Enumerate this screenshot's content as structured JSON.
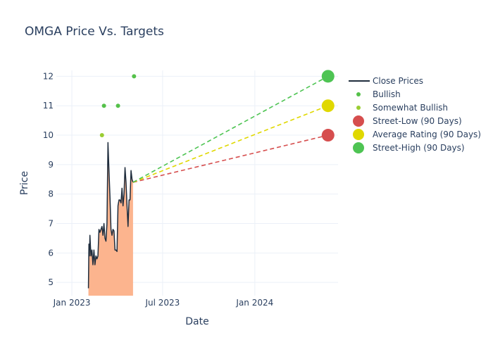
{
  "chart_data": {
    "type": "line",
    "title": "OMGA Price Vs. Targets",
    "xlabel": "Date",
    "ylabel": "Price",
    "x_tick_labels": [
      "Jan 2023",
      "Jul 2023",
      "Jan 2024"
    ],
    "x_tick_dates": [
      "2023-01-01",
      "2023-07-01",
      "2024-01-01"
    ],
    "y_tick_labels": [
      "5",
      "6",
      "7",
      "8",
      "9",
      "10",
      "11",
      "12"
    ],
    "x_range": [
      "2022-12-01",
      "2024-06-15"
    ],
    "y_range": [
      4.55,
      12.2
    ],
    "grid": true,
    "legend_position": "right",
    "series": [
      {
        "name": "Close Prices",
        "kind": "line",
        "color": "#1f2d3d",
        "fill_color": "#fcb48e",
        "points": [
          [
            "2023-02-03",
            4.8
          ],
          [
            "2023-02-04",
            6.3
          ],
          [
            "2023-02-05",
            5.9
          ],
          [
            "2023-02-06",
            6.6
          ],
          [
            "2023-02-08",
            5.9
          ],
          [
            "2023-02-10",
            6.1
          ],
          [
            "2023-02-12",
            5.6
          ],
          [
            "2023-02-14",
            6.1
          ],
          [
            "2023-02-16",
            5.6
          ],
          [
            "2023-02-18",
            5.9
          ],
          [
            "2023-02-20",
            5.8
          ],
          [
            "2023-02-22",
            5.9
          ],
          [
            "2023-02-24",
            6.8
          ],
          [
            "2023-02-26",
            6.7
          ],
          [
            "2023-02-28",
            6.8
          ],
          [
            "2023-03-02",
            6.9
          ],
          [
            "2023-03-04",
            6.6
          ],
          [
            "2023-03-06",
            7.0
          ],
          [
            "2023-03-08",
            6.5
          ],
          [
            "2023-03-10",
            6.4
          ],
          [
            "2023-03-12",
            7.0
          ],
          [
            "2023-03-14",
            9.75
          ],
          [
            "2023-03-16",
            8.8
          ],
          [
            "2023-03-18",
            7.9
          ],
          [
            "2023-03-20",
            6.8
          ],
          [
            "2023-03-22",
            6.6
          ],
          [
            "2023-03-24",
            6.8
          ],
          [
            "2023-03-26",
            6.75
          ],
          [
            "2023-03-28",
            6.1
          ],
          [
            "2023-03-30",
            6.1
          ],
          [
            "2023-04-01",
            6.05
          ],
          [
            "2023-04-03",
            7.6
          ],
          [
            "2023-04-05",
            7.8
          ],
          [
            "2023-04-07",
            7.8
          ],
          [
            "2023-04-09",
            7.7
          ],
          [
            "2023-04-11",
            8.2
          ],
          [
            "2023-04-13",
            7.6
          ],
          [
            "2023-04-15",
            8.0
          ],
          [
            "2023-04-17",
            8.9
          ],
          [
            "2023-04-19",
            8.4
          ],
          [
            "2023-04-21",
            7.6
          ],
          [
            "2023-04-23",
            6.9
          ],
          [
            "2023-04-25",
            7.8
          ],
          [
            "2023-04-27",
            7.8
          ],
          [
            "2023-04-29",
            8.8
          ],
          [
            "2023-05-01",
            8.5
          ],
          [
            "2023-05-03",
            8.4
          ]
        ]
      },
      {
        "name": "Bullish",
        "kind": "markers",
        "color": "#55c14a",
        "points": [
          [
            "2023-03-06",
            11
          ],
          [
            "2023-04-03",
            11
          ],
          [
            "2023-05-05",
            12
          ]
        ]
      },
      {
        "name": "Somewhat Bullish",
        "kind": "markers",
        "color": "#9acd32",
        "points": [
          [
            "2023-03-02",
            10
          ]
        ]
      },
      {
        "name": "Street-Low (90 Days)",
        "kind": "target",
        "color": "#d64e4e",
        "points": [
          [
            "2023-05-03",
            8.4
          ],
          [
            "2024-05-26",
            10
          ]
        ]
      },
      {
        "name": "Average Rating (90 Days)",
        "kind": "target",
        "color": "#e0d800",
        "points": [
          [
            "2023-05-03",
            8.4
          ],
          [
            "2024-05-26",
            11
          ]
        ]
      },
      {
        "name": "Street-High (90 Days)",
        "kind": "target",
        "color": "#4ec453",
        "points": [
          [
            "2023-05-03",
            8.4
          ],
          [
            "2024-05-26",
            12
          ]
        ]
      }
    ]
  }
}
